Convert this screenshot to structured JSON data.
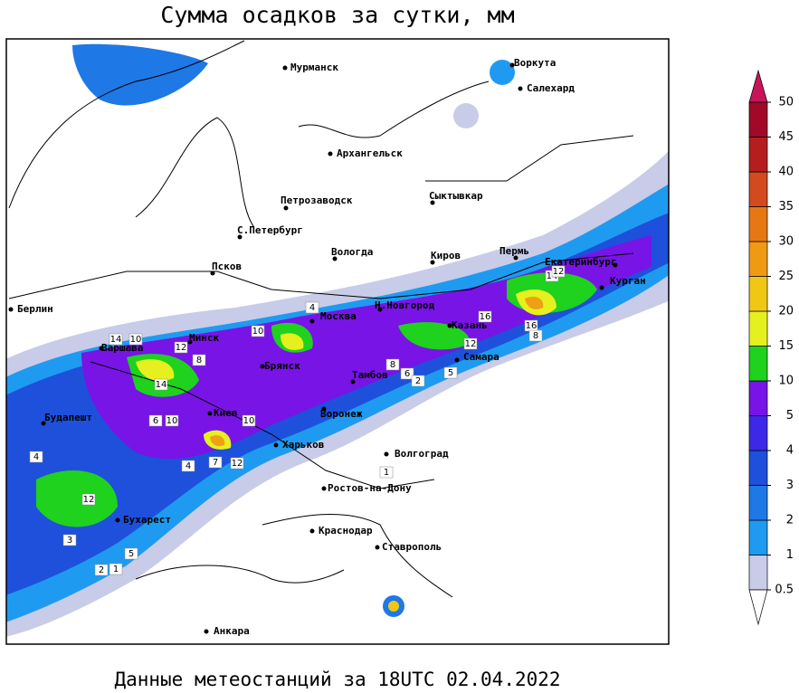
{
  "title": "Сумма осадков за сутки, мм",
  "subtitle": "Данные метеостанций за 18UTC 02.04.2022",
  "legend": {
    "ticks": [
      0.5,
      1,
      2,
      3,
      4,
      5,
      10,
      15,
      20,
      25,
      30,
      35,
      40,
      45,
      50
    ],
    "colors": [
      "#c8cce8",
      "#1e9bf0",
      "#1e78e6",
      "#1e50dc",
      "#3c28e6",
      "#7814e6",
      "#1ed21e",
      "#e6f01e",
      "#f0c814",
      "#f09a14",
      "#e67814",
      "#d24a1e",
      "#b41e1e",
      "#a00a28"
    ],
    "over_color": "#c8145a",
    "under_color": "#ffffff"
  },
  "cities": [
    "Мурманск",
    "Воркута",
    "Салехард",
    "Архангельск",
    "Петрозаводск",
    "Сыктывкар",
    "С.Петербург",
    "Вологда",
    "Киров",
    "Пермь",
    "Екатеринбург",
    "Курган",
    "Псков",
    "Берлин",
    "Н.Новгород",
    "Москва",
    "Казань",
    "Минск",
    "Варшава",
    "Самара",
    "Брянск",
    "Тамбов",
    "Воронеж",
    "Киев",
    "Будапешт",
    "Харьков",
    "Волгоград",
    "Ростов-на-Дону",
    "Бухарест",
    "Краснодар",
    "Ставрополь",
    "Анкара"
  ],
  "stations": [
    14,
    10,
    12,
    8,
    14,
    6,
    10,
    10,
    7,
    12,
    4,
    10,
    16,
    12,
    16,
    8,
    14,
    12,
    8,
    4,
    5,
    6,
    2,
    1,
    12,
    3,
    5,
    2,
    1,
    4
  ]
}
